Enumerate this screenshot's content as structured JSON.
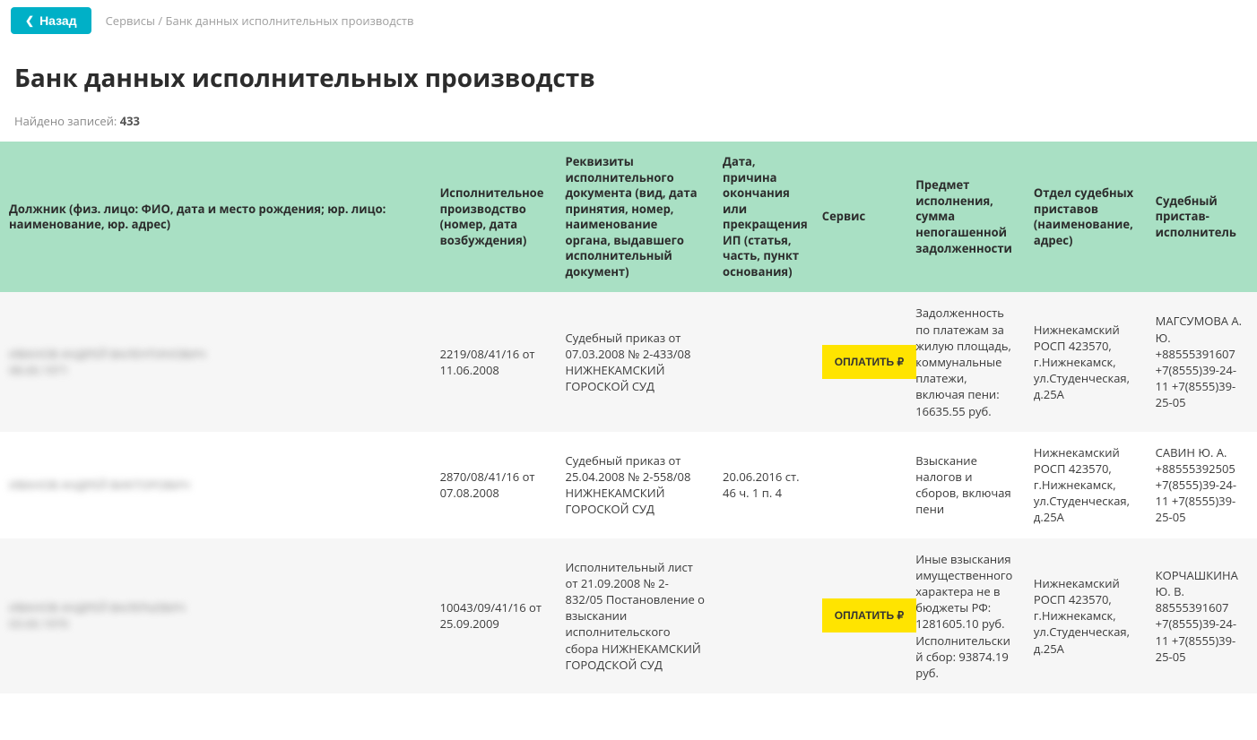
{
  "nav": {
    "back_label": "Назад",
    "crumb_services": "Сервисы",
    "crumb_sep": " / ",
    "crumb_current": "Банк данных исполнительных производств"
  },
  "page": {
    "title": "Банк данных исполнительных производств",
    "records_label": "Найдено записей: ",
    "records_count": "433"
  },
  "table": {
    "headers": {
      "debtor": "Должник (физ. лицо: ФИО, дата и место рождения; юр. лицо: наименование, юр. адрес)",
      "case": "Исполнительное производство (номер, дата возбуждения)",
      "doc": "Реквизиты исполнительного документа (вид, дата принятия, номер, наименование органа, выдавшего исполнительный документ)",
      "end_date": "Дата, причина окончания или прекращения ИП (статья, часть, пункт основания)",
      "service": "Сервис",
      "subject": "Предмет исполнения, сумма непогашенной задолженности",
      "dept": "Отдел судебных приставов (наименование, адрес)",
      "bailiff": "Судебный пристав-исполнитель"
    },
    "rows": [
      {
        "debtor_line1": "ИВАНОВ АНДРЕЙ ВАЛЕНТИНОВИЧ",
        "debtor_line2": "08.00.1971",
        "case": "2219/08/41/16 от 11.06.2008",
        "doc": "Судебный приказ от 07.03.2008 № 2-433/08 НИЖНЕКАМСКИЙ ГОРОСКОЙ СУД",
        "end_date": "",
        "service_pay": "ОПЛАТИТЬ ₽",
        "subject": "Задолженность по платежам за жилую площадь, коммунальные платежи, включая пени: 16635.55 руб.",
        "dept": "Нижнекамский РОСП 423570, г.Нижнекамск, ул.Студенческая, д.25А",
        "bailiff": "МАГСУМОВА А. Ю. +88555391607 +7(8555)39-24-11 +7(8555)39-25-05"
      },
      {
        "debtor_line1": "ИВАНОВ АНДРЕЙ ВИКТОРОВИЧ",
        "debtor_line2": "",
        "case": "2870/08/41/16 от 07.08.2008",
        "doc": "Судебный приказ от 25.04.2008 № 2-558/08 НИЖНЕКАМСКИЙ ГОРОСКОЙ СУД",
        "end_date": "20.06.2016 ст. 46 ч. 1 п. 4",
        "service_pay": "",
        "subject": "Взыскание налогов и сборов, включая пени",
        "dept": "Нижнекамский РОСП 423570, г.Нижнекамск, ул.Студенческая, д.25А",
        "bailiff": "САВИН Ю. А. +88555392505 +7(8555)39-24-11 +7(8555)39-25-05"
      },
      {
        "debtor_line1": "ИВАНОВ АНДРЕЙ ВАЛЕРЬЕВИЧ",
        "debtor_line2": "03.00.1970",
        "case": "10043/09/41/16 от 25.09.2009",
        "doc": "Исполнительный лист от 21.09.2008 № 2-832/05 Постановление о взыскании исполнительского сбора НИЖНЕКАМСКИЙ ГОРОДСКОЙ СУД",
        "end_date": "",
        "service_pay": "ОПЛАТИТЬ ₽",
        "subject": "Иные взыскания имущественного характера не в бюджеты РФ: 1281605.10 руб. Исполнительский сбор: 93874.19 руб.",
        "dept": "Нижнекамский РОСП 423570, г.Нижнекамск, ул.Студенческая, д.25А",
        "bailiff": "КОРЧАШКИНА Ю. В. 88555391607 +7(8555)39-24-11 +7(8555)39-25-05"
      }
    ]
  },
  "colors": {
    "accent": "#00b0c7",
    "header_bg": "#a9e0c4",
    "pay_bg": "#ffe400",
    "row_alt": "#f6f6f6"
  }
}
